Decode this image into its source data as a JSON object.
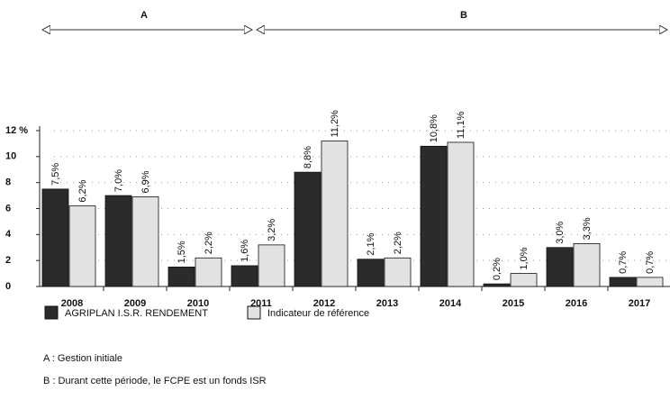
{
  "chart_data": {
    "type": "bar",
    "categories": [
      "2008",
      "2009",
      "2010",
      "2011",
      "2012",
      "2013",
      "2014",
      "2015",
      "2016",
      "2017"
    ],
    "series": [
      {
        "name": "AGRIPLAN I.S.R. RENDEMENT",
        "color": "#2b2b2b",
        "values": [
          7.5,
          7.0,
          1.5,
          1.6,
          8.8,
          2.1,
          10.8,
          0.2,
          3.0,
          0.7
        ],
        "value_labels": [
          "7,5%",
          "7,0%",
          "1,5%",
          "1,6%",
          "8,8%",
          "2,1%",
          "10,8%",
          "0,2%",
          "3,0%",
          "0,7%"
        ]
      },
      {
        "name": "Indicateur de référence",
        "color": "#e2e2e2",
        "values": [
          6.2,
          6.9,
          2.2,
          3.2,
          11.2,
          2.2,
          11.1,
          1.0,
          3.3,
          0.7
        ],
        "value_labels": [
          "6,2%",
          "6,9%",
          "2,2%",
          "3,2%",
          "11,2%",
          "2,2%",
          "11,1%",
          "1,0%",
          "3,3%",
          "0,7%"
        ]
      }
    ],
    "ylim": [
      0,
      12
    ],
    "yticks": [
      0,
      2,
      4,
      6,
      8,
      10,
      {
        "value": 12,
        "label": "12 %"
      }
    ],
    "grid": true,
    "legend": "bottom-left",
    "annotations": {
      "periods": [
        {
          "label": "A"
        },
        {
          "label": "B"
        }
      ],
      "notes": [
        "A : Gestion initiale",
        "B : Durant cette période, le FCPE est un fonds ISR"
      ]
    }
  }
}
